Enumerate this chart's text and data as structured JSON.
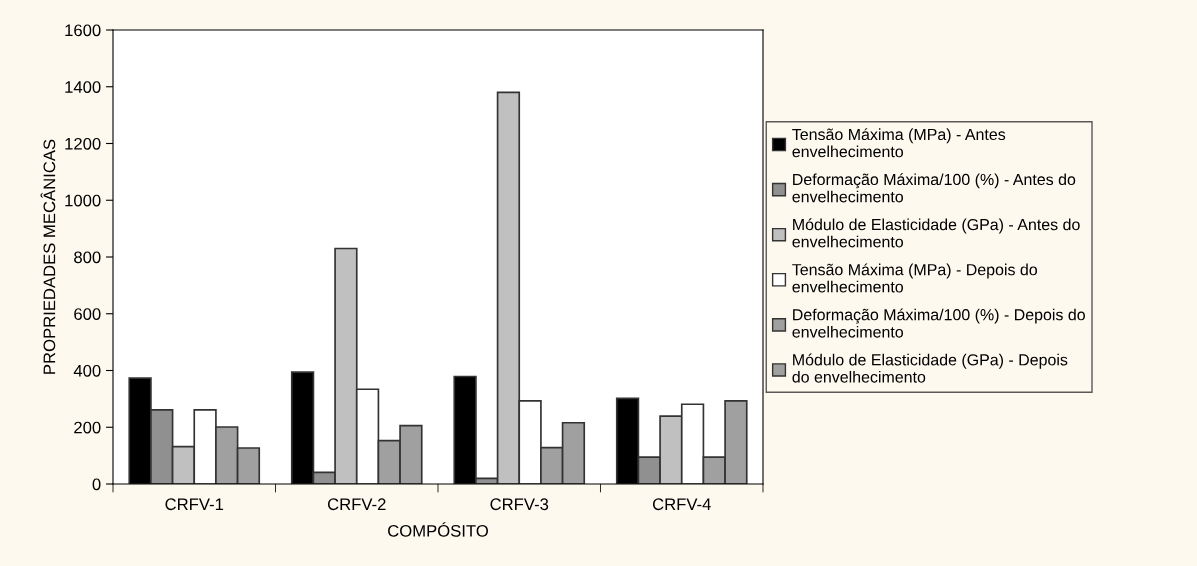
{
  "chart_data": {
    "type": "bar",
    "xlabel": "COMPÓSITO",
    "ylabel": "PROPRIEDADES MECÂNICAS",
    "categories": [
      "CRFV-1",
      "CRFV-2",
      "CRFV-3",
      "CRFV-4"
    ],
    "series": [
      {
        "name": "Tensão Máxima (MPa) - Antes\nenvelhecimento",
        "color": "#000000",
        "values": [
          373,
          394,
          379,
          302
        ]
      },
      {
        "name": "Deformação Máxima/100 (%) - Antes do\nenvelhecimento",
        "color": "#909090",
        "values": [
          261,
          41,
          20,
          95
        ]
      },
      {
        "name": "Módulo de Elasticidade (GPa) - Antes do\nenvelhecimento",
        "color": "#c0c0c0",
        "values": [
          132,
          830,
          1380,
          239
        ]
      },
      {
        "name": "Tensão Máxima (MPa) - Depois do\nenvelhecimento",
        "color": "#ffffff",
        "values": [
          261,
          334,
          293,
          281
        ]
      },
      {
        "name": "Deformação Máxima/100 (%) - Depois do\nenvelhecimento",
        "color": "#a0a0a0",
        "values": [
          201,
          153,
          128,
          95
        ]
      },
      {
        "name": "Módulo de Elasticidade (GPa) - Depois\ndo envelhecimento",
        "color": "#a0a0a0",
        "values": [
          127,
          206,
          216,
          293
        ]
      }
    ],
    "ylim": [
      0,
      1600
    ],
    "yticks": [
      0,
      200,
      400,
      600,
      800,
      1000,
      1200,
      1400,
      1600
    ],
    "grid": false,
    "legend": "right"
  }
}
